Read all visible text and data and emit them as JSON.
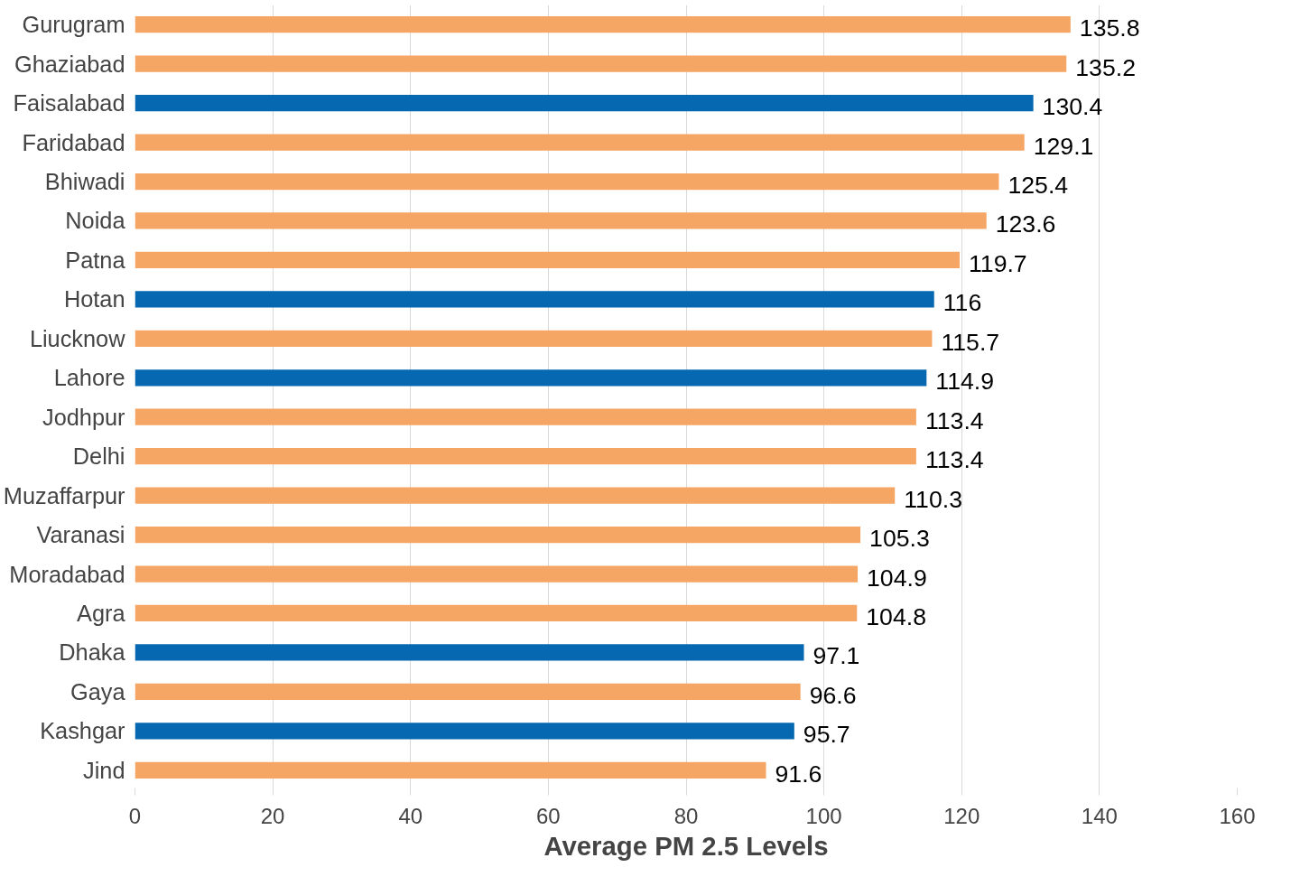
{
  "chart_data": {
    "type": "bar",
    "orientation": "horizontal",
    "xlabel": "Average PM 2.5 Levels",
    "categories": [
      "Gurugram",
      "Ghaziabad",
      "Faisalabad",
      "Faridabad",
      "Bhiwadi",
      "Noida",
      "Patna",
      "Hotan",
      "Liucknow",
      "Lahore",
      "Jodhpur",
      "Delhi",
      "Muzaffarpur",
      "Varanasi",
      "Moradabad",
      "Agra",
      "Dhaka",
      "Gaya",
      "Kashgar",
      "Jind"
    ],
    "values": [
      135.8,
      135.2,
      130.4,
      129.1,
      125.4,
      123.6,
      119.7,
      116,
      115.7,
      114.9,
      113.4,
      113.4,
      110.3,
      105.3,
      104.9,
      104.8,
      97.1,
      96.6,
      95.7,
      91.6
    ],
    "colors": [
      "#f6a664",
      "#f6a664",
      "#0568b0",
      "#f6a664",
      "#f6a664",
      "#f6a664",
      "#f6a664",
      "#0568b0",
      "#f6a664",
      "#0568b0",
      "#f6a664",
      "#f6a664",
      "#f6a664",
      "#f6a664",
      "#f6a664",
      "#f6a664",
      "#0568b0",
      "#f6a664",
      "#0568b0",
      "#f6a664"
    ],
    "xlim": [
      0,
      160
    ],
    "xticks": [
      0,
      20,
      40,
      60,
      80,
      100,
      120,
      140,
      160
    ],
    "grid": "x",
    "data_labels": true
  }
}
